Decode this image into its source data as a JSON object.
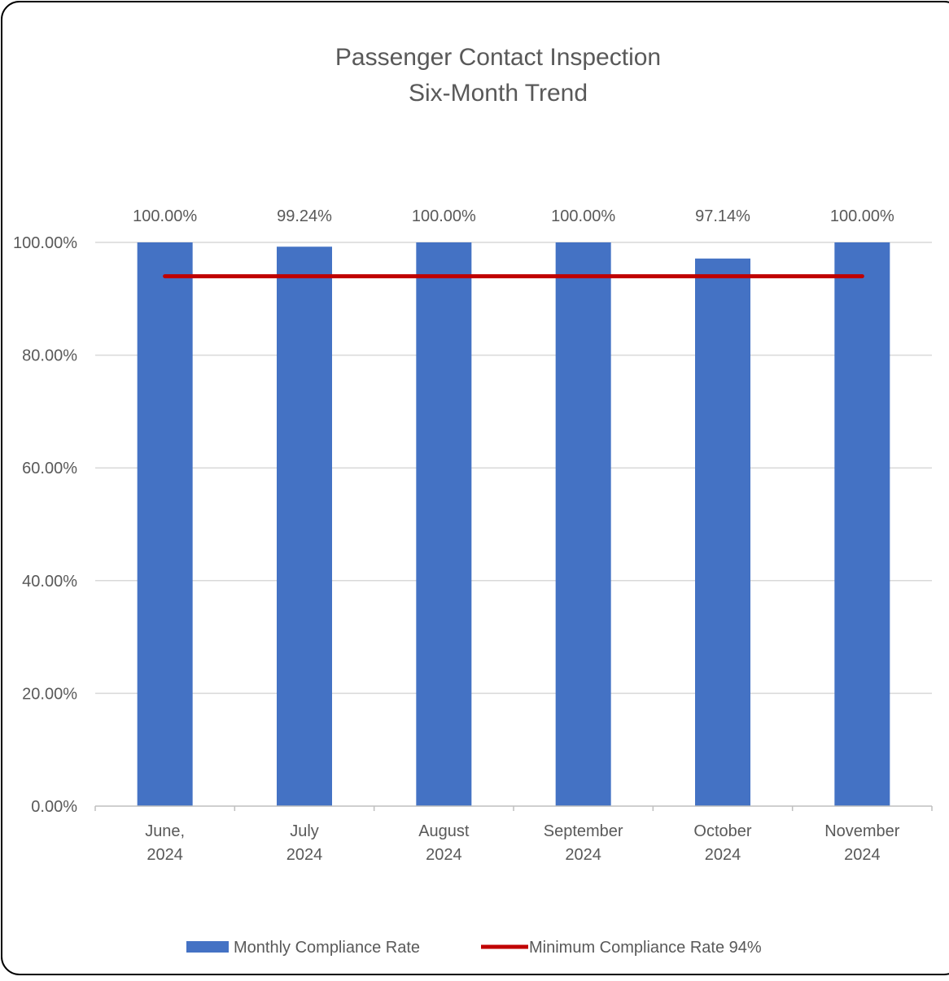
{
  "chart_data": {
    "type": "bar",
    "title": [
      "Passenger Contact Inspection",
      "Six-Month Trend"
    ],
    "categories": [
      [
        "June,",
        "2024"
      ],
      [
        "July",
        "2024"
      ],
      [
        "August",
        "2024"
      ],
      [
        "September",
        "2024"
      ],
      [
        "October",
        "2024"
      ],
      [
        "November",
        "2024"
      ]
    ],
    "series": [
      {
        "name": "Monthly Compliance Rate",
        "type": "bar",
        "values": [
          100.0,
          99.24,
          100.0,
          100.0,
          97.14,
          100.0
        ],
        "data_labels": [
          "100.00%",
          "99.24%",
          "100.00%",
          "100.00%",
          "97.14%",
          "100.00%"
        ],
        "color": "#4472C4"
      },
      {
        "name": "Minimum Compliance Rate 94%",
        "type": "line",
        "values": [
          94,
          94,
          94,
          94,
          94,
          94
        ],
        "color": "#C00000"
      }
    ],
    "ylim": [
      0,
      100
    ],
    "yticks": [
      "0.00%",
      "20.00%",
      "40.00%",
      "60.00%",
      "80.00%",
      "100.00%"
    ],
    "ytick_values": [
      0,
      20,
      40,
      60,
      80,
      100
    ],
    "grid": true,
    "legend_position": "bottom",
    "colors": {
      "text": "#595959",
      "grid": "#D9D9D9",
      "axis": "#BFBFBF",
      "border": "#000000"
    }
  }
}
